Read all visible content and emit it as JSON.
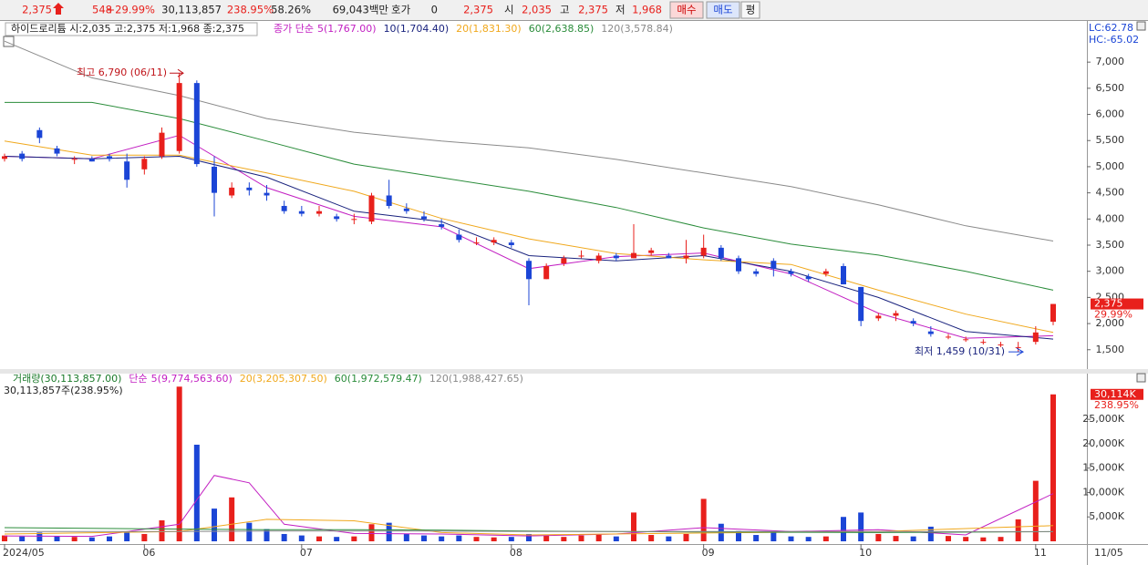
{
  "toolbar": {
    "price": "2,375",
    "change": "548",
    "change_rate": "+29.99%",
    "volume": "30,113,857",
    "volume_rate": "238.95%",
    "ratio": "58.26%",
    "amount": "69,043백만",
    "quote_label": "호가",
    "quote": "0",
    "quote_price": "2,375",
    "open_label": "시",
    "open": "2,035",
    "high_label": "고",
    "high": "2,375",
    "low_label": "저",
    "low": "1,968",
    "buttons": [
      "매수",
      "매도",
      "평"
    ]
  },
  "chart_data": [
    {
      "type": "candlestick",
      "title": "하이드로리튬 시:2,035 고:2,375 저:1,968 종:2,375",
      "legend_prefix": "종가 단순",
      "indicators": [
        "LC:62.78",
        "HC:-65.02"
      ],
      "last_price_label": "2,375",
      "last_rate_label": "29.99%",
      "annotations": [
        "최고 6,790 (06/11)",
        "최저 1,459 (10/31)"
      ],
      "x_end_label": "11/05",
      "up_color": "#e8201c",
      "down_color": "#1b45d6",
      "categories": [
        "2024/05",
        null,
        null,
        null,
        null,
        null,
        null,
        null,
        "06",
        null,
        null,
        null,
        null,
        null,
        null,
        null,
        null,
        "07",
        null,
        null,
        null,
        null,
        null,
        null,
        null,
        null,
        null,
        null,
        null,
        "08",
        null,
        null,
        null,
        null,
        null,
        null,
        null,
        null,
        null,
        null,
        "09",
        null,
        null,
        null,
        null,
        null,
        null,
        null,
        null,
        "10",
        null,
        null,
        null,
        null,
        null,
        null,
        null,
        null,
        null,
        "11",
        null
      ],
      "open": [
        5150,
        5250,
        5700,
        5350,
        5150,
        5150,
        5200,
        5100,
        4950,
        5200,
        5300,
        6600,
        5000,
        4450,
        4600,
        4500,
        4250,
        4150,
        4100,
        4050,
        4000,
        3950,
        4450,
        4200,
        4050,
        3900,
        3700,
        3550,
        3550,
        3550,
        3200,
        2850,
        3150,
        3300,
        3200,
        3300,
        3250,
        3350,
        3300,
        3250,
        3300,
        3450,
        3250,
        3000,
        3200,
        3000,
        2900,
        2950,
        3100,
        2700,
        2100,
        2150,
        2050,
        1850,
        1750,
        1700,
        1650,
        1600,
        1550,
        1650,
        2035
      ],
      "high": [
        5250,
        5300,
        5750,
        5400,
        5200,
        5200,
        5250,
        5250,
        5200,
        5750,
        6790,
        6650,
        5200,
        4700,
        4700,
        4650,
        4350,
        4250,
        4250,
        4100,
        4100,
        4500,
        4750,
        4300,
        4150,
        4000,
        3800,
        3650,
        3650,
        3600,
        3250,
        3150,
        3300,
        3400,
        3350,
        3350,
        3900,
        3450,
        3350,
        3600,
        3700,
        3500,
        3300,
        3050,
        3250,
        3050,
        2950,
        3050,
        3150,
        2700,
        2200,
        2250,
        2100,
        1950,
        1800,
        1750,
        1700,
        1650,
        1650,
        1950,
        2375
      ],
      "low": [
        5100,
        5100,
        5450,
        5200,
        5050,
        5100,
        5100,
        4600,
        4850,
        5150,
        5250,
        5000,
        4050,
        4400,
        4450,
        4350,
        4100,
        4050,
        4050,
        3950,
        3900,
        3900,
        4200,
        4100,
        3950,
        3800,
        3550,
        3500,
        3500,
        3450,
        2350,
        2850,
        3100,
        3250,
        3150,
        3200,
        3250,
        3300,
        3250,
        3150,
        3250,
        3200,
        2950,
        2900,
        2900,
        2900,
        2800,
        2900,
        2750,
        1950,
        2050,
        2050,
        1950,
        1750,
        1700,
        1650,
        1600,
        1550,
        1459,
        1600,
        1968
      ],
      "close": [
        5200,
        5150,
        5550,
        5250,
        5150,
        5100,
        5150,
        4750,
        5150,
        5650,
        6600,
        5050,
        4500,
        4600,
        4550,
        4450,
        4150,
        4100,
        4150,
        4000,
        4000,
        4450,
        4250,
        4150,
        4000,
        3850,
        3600,
        3550,
        3600,
        3500,
        2850,
        3100,
        3250,
        3300,
        3300,
        3250,
        3350,
        3400,
        3250,
        3300,
        3450,
        3250,
        3000,
        2950,
        3050,
        2950,
        2850,
        3000,
        2750,
        2050,
        2150,
        2200,
        2000,
        1800,
        1750,
        1700,
        1650,
        1600,
        1550,
        1830,
        2375
      ],
      "series": [
        {
          "name": "5(1,767.00)",
          "color": "#c21fc2",
          "x": [
            0,
            5,
            10,
            15,
            20,
            25,
            30,
            35,
            40,
            45,
            50,
            55,
            60
          ],
          "values": [
            5200,
            5150,
            5600,
            4600,
            4050,
            3850,
            3050,
            3280,
            3350,
            2950,
            2200,
            1720,
            1767
          ]
        },
        {
          "name": "10(1,704.40)",
          "color": "#1a237e",
          "x": [
            0,
            5,
            10,
            15,
            20,
            25,
            30,
            35,
            40,
            45,
            50,
            55,
            60
          ],
          "values": [
            5200,
            5150,
            5200,
            4800,
            4150,
            3950,
            3300,
            3200,
            3300,
            3000,
            2500,
            1850,
            1704
          ]
        },
        {
          "name": "20(1,831.30)",
          "color": "#f0a81c",
          "x": [
            0,
            5,
            10,
            15,
            20,
            25,
            30,
            35,
            40,
            45,
            50,
            55,
            60
          ],
          "values": [
            5490,
            5220,
            5220,
            4880,
            4530,
            4010,
            3620,
            3340,
            3220,
            3130,
            2640,
            2180,
            1831
          ]
        },
        {
          "name": "60(2,638.85)",
          "color": "#2a8c3a",
          "x": [
            0,
            5,
            10,
            15,
            20,
            25,
            30,
            35,
            40,
            45,
            50,
            55,
            60
          ],
          "values": [
            6230,
            6230,
            5920,
            5490,
            5050,
            4790,
            4530,
            4220,
            3830,
            3520,
            3310,
            3000,
            2639
          ]
        },
        {
          "name": "120(3,578.84)",
          "color": "#8a8a8a",
          "x": [
            0,
            5,
            10,
            15,
            20,
            25,
            30,
            35,
            40,
            45,
            50,
            55,
            60
          ],
          "values": [
            7400,
            6700,
            6360,
            5920,
            5660,
            5490,
            5360,
            5140,
            4880,
            4620,
            4270,
            3870,
            3579
          ]
        }
      ],
      "ylim": [
        1130,
        7700
      ],
      "yticks": [
        {
          "value": 1500,
          "label": "1,500"
        },
        {
          "value": 2000,
          "label": "2,000"
        },
        {
          "value": 2500,
          "label": "2,500"
        },
        {
          "value": 3000,
          "label": "3,000"
        },
        {
          "value": 3500,
          "label": "3,500"
        },
        {
          "value": 4000,
          "label": "4,000"
        },
        {
          "value": 4500,
          "label": "4,500"
        },
        {
          "value": 5000,
          "label": "5,000"
        },
        {
          "value": 5500,
          "label": "5,500"
        },
        {
          "value": 6000,
          "label": "6,000"
        },
        {
          "value": 6500,
          "label": "6,500"
        },
        {
          "value": 7000,
          "label": "7,000"
        }
      ]
    },
    {
      "type": "bar",
      "title": "거래량(30,113,857.00)",
      "subtitle": "30,113,857주(238.95%)",
      "legend_prefix": "단순",
      "last_label": "30,114K",
      "last_rate_label": "238.95%",
      "values": [
        1200,
        1000,
        1800,
        1100,
        900,
        800,
        1000,
        1900,
        1500,
        4300,
        31700,
        19800,
        6700,
        9000,
        3800,
        2500,
        1500,
        1200,
        1000,
        900,
        1000,
        3500,
        3800,
        1500,
        1200,
        1000,
        1200,
        900,
        800,
        900,
        1500,
        1200,
        900,
        1200,
        1500,
        1000,
        5900,
        1300,
        1000,
        1500,
        8700,
        3600,
        2100,
        1300,
        1800,
        1000,
        900,
        1000,
        5000,
        5900,
        1500,
        1100,
        1000,
        3000,
        1100,
        900,
        800,
        900,
        4500,
        12400,
        30114
      ],
      "series": [
        {
          "name": "5(9,774,563.60)",
          "color": "#c21fc2",
          "x": [
            0,
            5,
            10,
            12,
            14,
            16,
            20,
            25,
            30,
            35,
            40,
            45,
            50,
            55,
            60
          ],
          "values": [
            1100,
            1000,
            3500,
            13500,
            12000,
            3500,
            1600,
            1500,
            1100,
            1500,
            2800,
            2000,
            2400,
            1300,
            9775
          ]
        },
        {
          "name": "20(3,205,307.50)",
          "color": "#f0a81c",
          "x": [
            0,
            10,
            15,
            20,
            25,
            30,
            40,
            50,
            60
          ],
          "values": [
            1500,
            2000,
            4500,
            4200,
            1800,
            1300,
            1700,
            2000,
            3205
          ]
        },
        {
          "name": "60(1,972,579.47)",
          "color": "#2a8c3a",
          "x": [
            0,
            10,
            15,
            20,
            25,
            30,
            40,
            50,
            60
          ],
          "values": [
            2800,
            2500,
            2400,
            2400,
            2300,
            2100,
            1900,
            1800,
            1973
          ]
        },
        {
          "name": "120(1,988,427.65)",
          "color": "#8a8a8a",
          "x": [
            0,
            10,
            15,
            20,
            25,
            30,
            40,
            50,
            60
          ],
          "values": [
            2000,
            2000,
            2100,
            2100,
            2100,
            2000,
            2000,
            2000,
            1988
          ]
        }
      ],
      "ylim": [
        0,
        32500
      ],
      "yticks": [
        {
          "value": 5000,
          "label": "5,000K"
        },
        {
          "value": 10000,
          "label": "10,000K"
        },
        {
          "value": 15000,
          "label": "15,000K"
        },
        {
          "value": 20000,
          "label": "20,000K"
        },
        {
          "value": 25000,
          "label": "25,000K"
        }
      ]
    }
  ]
}
